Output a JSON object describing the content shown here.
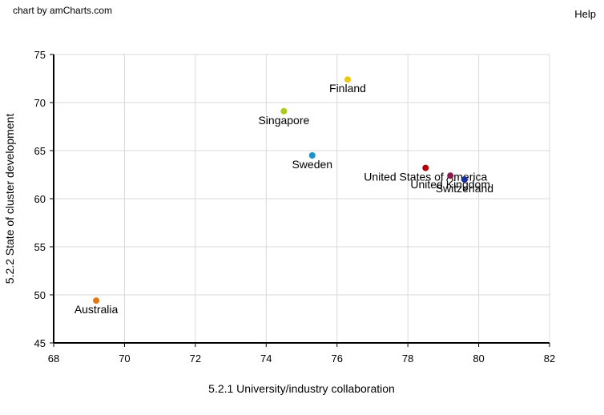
{
  "credit": "chart by amCharts.com",
  "help_label": "Help",
  "chart_data": {
    "type": "scatter",
    "xlabel": "5.2.1 University/industry collaboration",
    "ylabel": "5.2.2 State of cluster development",
    "xlim": [
      68,
      82
    ],
    "ylim": [
      45,
      75
    ],
    "x_ticks": [
      68,
      70,
      72,
      74,
      76,
      78,
      80,
      82
    ],
    "y_ticks": [
      45,
      50,
      55,
      60,
      65,
      70,
      75
    ],
    "grid": true,
    "points": [
      {
        "label": "Finland",
        "x": 76.3,
        "y": 72.4,
        "color": "#f2c60f"
      },
      {
        "label": "Singapore",
        "x": 74.5,
        "y": 69.1,
        "color": "#a8cd1b"
      },
      {
        "label": "Sweden",
        "x": 75.3,
        "y": 64.5,
        "color": "#1f91c6"
      },
      {
        "label": "United States of America",
        "x": 78.5,
        "y": 63.2,
        "color": "#b3000c"
      },
      {
        "label": "United Kingdom",
        "x": 79.2,
        "y": 62.4,
        "color": "#8d1a4f"
      },
      {
        "label": "Switzerland",
        "x": 79.6,
        "y": 62.0,
        "color": "#1a2f9c"
      },
      {
        "label": "Australia",
        "x": 69.2,
        "y": 49.4,
        "color": "#e07812"
      }
    ]
  }
}
